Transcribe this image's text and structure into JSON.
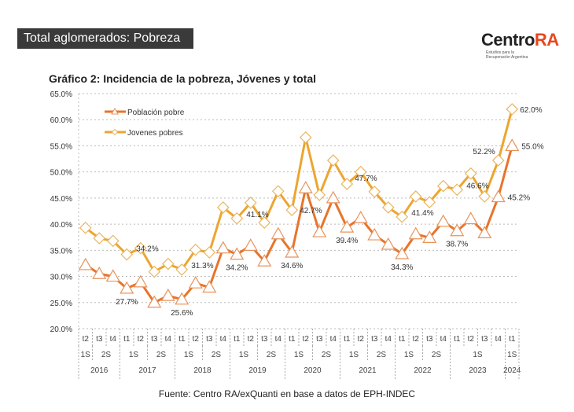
{
  "header": {
    "title": "Total aglomerados: Pobreza"
  },
  "logo": {
    "text_a": "Centro",
    "text_b": "RA",
    "tagline_1": "Estudios para la",
    "tagline_2": "Recuperación Argentina"
  },
  "source": "Fuente: Centro RA/exQuanti en base a datos de EPH-INDEC",
  "chart_data": {
    "type": "line",
    "title": "Gráfico 2: Incidencia de la pobreza, Jóvenes y total",
    "ylim": [
      20,
      65
    ],
    "yticks": [
      "20.0%",
      "25.0%",
      "30.0%",
      "35.0%",
      "40.0%",
      "45.0%",
      "50.0%",
      "55.0%",
      "60.0%",
      "65.0%"
    ],
    "grid": true,
    "legend_position": "top-left",
    "x_quarters": [
      "t2",
      "t3",
      "t4",
      "t1",
      "t2",
      "t3",
      "t4",
      "t1",
      "t2",
      "t3",
      "t4",
      "t1",
      "t2",
      "t3",
      "t4",
      "t1",
      "t2",
      "t3",
      "t4",
      "t1",
      "t2",
      "t3",
      "t4",
      "t1",
      "t2",
      "t3",
      "t4",
      "t1",
      "t2",
      "t3",
      "t4",
      "t1"
    ],
    "x_semesters": [
      {
        "label": "1S",
        "span": 1
      },
      {
        "label": "2S",
        "span": 2
      },
      {
        "label": "1S",
        "span": 2
      },
      {
        "label": "2S",
        "span": 2
      },
      {
        "label": "1S",
        "span": 2
      },
      {
        "label": "2S",
        "span": 2
      },
      {
        "label": "1S",
        "span": 2
      },
      {
        "label": "2S",
        "span": 2
      },
      {
        "label": "1S",
        "span": 2
      },
      {
        "label": "2S",
        "span": 2
      },
      {
        "label": "1S",
        "span": 2
      },
      {
        "label": "2S",
        "span": 2
      },
      {
        "label": "1S",
        "span": 2
      },
      {
        "label": "2S",
        "span": 2
      },
      {
        "label": "1S",
        "span": 4
      },
      {
        "label": "1S",
        "span": 1
      }
    ],
    "x_years": [
      {
        "label": "2016",
        "span": 3
      },
      {
        "label": "2017",
        "span": 4
      },
      {
        "label": "2018",
        "span": 4
      },
      {
        "label": "2019",
        "span": 4
      },
      {
        "label": "2020",
        "span": 4
      },
      {
        "label": "2021",
        "span": 4
      },
      {
        "label": "2022",
        "span": 4
      },
      {
        "label": "2023",
        "span": 4
      },
      {
        "label": "2024",
        "span": 1
      }
    ],
    "series": [
      {
        "name": "Población pobre",
        "color": "#e8742a",
        "marker": "triangle",
        "values": [
          32.2,
          30.5,
          30.0,
          27.7,
          28.9,
          25.0,
          26.3,
          25.6,
          28.7,
          27.9,
          35.4,
          34.2,
          35.9,
          32.9,
          38.1,
          34.6,
          46.9,
          38.5,
          45.0,
          39.4,
          41.2,
          37.9,
          36.1,
          34.3,
          38.1,
          37.4,
          40.5,
          38.7,
          41.0,
          38.3,
          45.2,
          55.0
        ],
        "labels": [
          {
            "index": 3,
            "text": "27.7%"
          },
          {
            "index": 7,
            "text": "25.6%"
          },
          {
            "index": 11,
            "text": "34.2%"
          },
          {
            "index": 15,
            "text": "34.6%"
          },
          {
            "index": 19,
            "text": "39.4%"
          },
          {
            "index": 23,
            "text": "34.3%"
          },
          {
            "index": 27,
            "text": "38.7%"
          },
          {
            "index": 30,
            "text": "45.2%"
          },
          {
            "index": 31,
            "text": "55.0%"
          }
        ]
      },
      {
        "name": "Jovenes pobres",
        "color": "#eda530",
        "marker": "diamond",
        "values": [
          39.3,
          37.3,
          36.8,
          34.2,
          35.4,
          30.9,
          32.4,
          31.3,
          35.1,
          34.6,
          43.2,
          41.1,
          44.1,
          40.3,
          46.3,
          42.7,
          56.6,
          45.6,
          52.2,
          47.7,
          50.0,
          46.2,
          43.2,
          41.4,
          45.3,
          44.2,
          47.3,
          46.6,
          49.7,
          45.3,
          52.2,
          62.0
        ],
        "labels": [
          {
            "index": 3,
            "text": "34.2%"
          },
          {
            "index": 7,
            "text": "31.3%"
          },
          {
            "index": 11,
            "text": "41.1%"
          },
          {
            "index": 15,
            "text": "42.7%"
          },
          {
            "index": 19,
            "text": "47.7%"
          },
          {
            "index": 23,
            "text": "41.4%"
          },
          {
            "index": 27,
            "text": "46.6%"
          },
          {
            "index": 30,
            "text": "52.2%"
          },
          {
            "index": 31,
            "text": "62.0%"
          }
        ]
      }
    ]
  }
}
